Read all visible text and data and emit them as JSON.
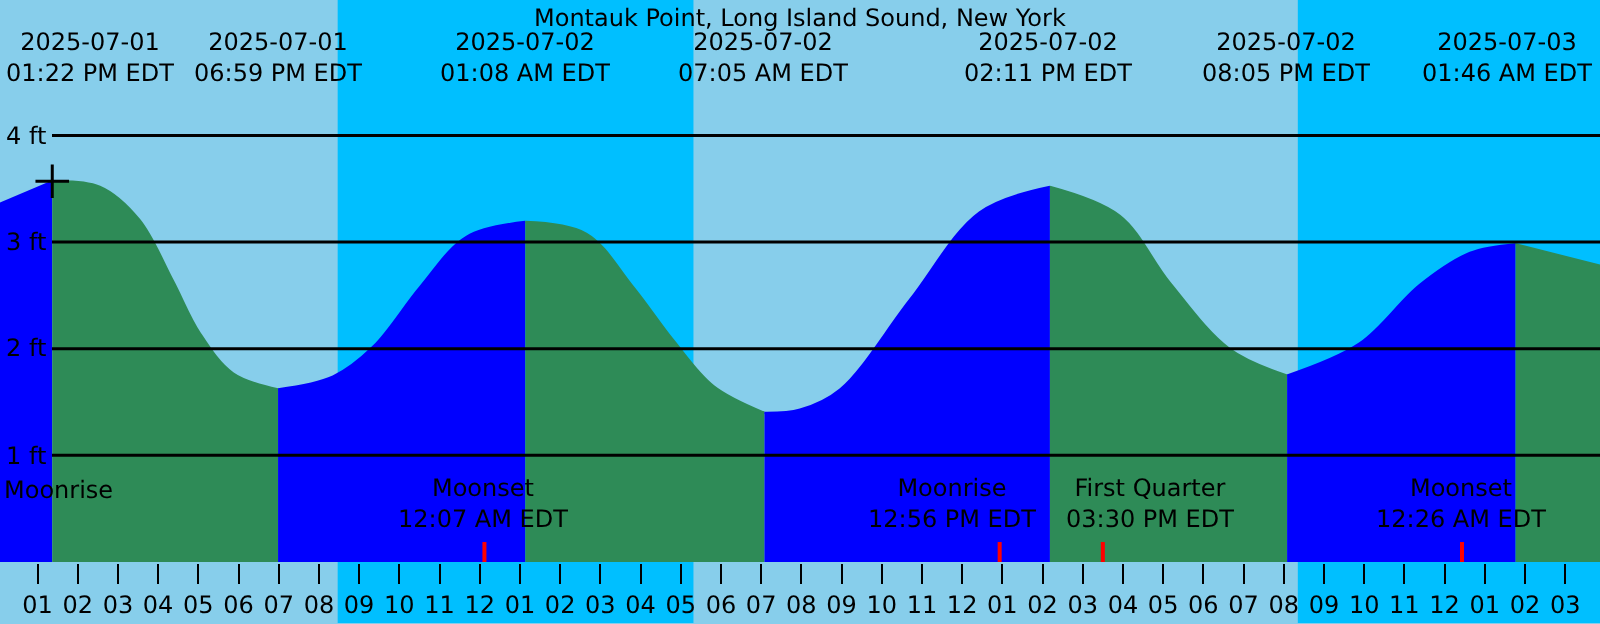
{
  "chart_data": {
    "type": "area",
    "title": "Montauk Point, Long Island Sound, New York",
    "xlim": [
      "2025-07-01T12:04",
      "2025-07-03T03:52"
    ],
    "xticks": [
      {
        "value": "2025-07-01T13:00",
        "label": "01"
      },
      {
        "value": "2025-07-01T14:00",
        "label": "02"
      },
      {
        "value": "2025-07-01T15:00",
        "label": "03"
      },
      {
        "value": "2025-07-01T16:00",
        "label": "04"
      },
      {
        "value": "2025-07-01T17:00",
        "label": "05"
      },
      {
        "value": "2025-07-01T18:00",
        "label": "06"
      },
      {
        "value": "2025-07-01T19:00",
        "label": "07"
      },
      {
        "value": "2025-07-01T20:00",
        "label": "08"
      },
      {
        "value": "2025-07-01T21:00",
        "label": "09"
      },
      {
        "value": "2025-07-01T22:00",
        "label": "10"
      },
      {
        "value": "2025-07-01T23:00",
        "label": "11"
      },
      {
        "value": "2025-07-02T00:00",
        "label": "12"
      },
      {
        "value": "2025-07-02T01:00",
        "label": "01"
      },
      {
        "value": "2025-07-02T02:00",
        "label": "02"
      },
      {
        "value": "2025-07-02T03:00",
        "label": "03"
      },
      {
        "value": "2025-07-02T04:00",
        "label": "04"
      },
      {
        "value": "2025-07-02T05:00",
        "label": "05"
      },
      {
        "value": "2025-07-02T06:00",
        "label": "06"
      },
      {
        "value": "2025-07-02T07:00",
        "label": "07"
      },
      {
        "value": "2025-07-02T08:00",
        "label": "08"
      },
      {
        "value": "2025-07-02T09:00",
        "label": "09"
      },
      {
        "value": "2025-07-02T10:00",
        "label": "10"
      },
      {
        "value": "2025-07-02T11:00",
        "label": "11"
      },
      {
        "value": "2025-07-02T12:00",
        "label": "12"
      },
      {
        "value": "2025-07-02T13:00",
        "label": "01"
      },
      {
        "value": "2025-07-02T14:00",
        "label": "02"
      },
      {
        "value": "2025-07-02T15:00",
        "label": "03"
      },
      {
        "value": "2025-07-02T16:00",
        "label": "04"
      },
      {
        "value": "2025-07-02T17:00",
        "label": "05"
      },
      {
        "value": "2025-07-02T18:00",
        "label": "06"
      },
      {
        "value": "2025-07-02T19:00",
        "label": "07"
      },
      {
        "value": "2025-07-02T20:00",
        "label": "08"
      },
      {
        "value": "2025-07-02T21:00",
        "label": "09"
      },
      {
        "value": "2025-07-02T22:00",
        "label": "10"
      },
      {
        "value": "2025-07-02T23:00",
        "label": "11"
      },
      {
        "value": "2025-07-03T00:00",
        "label": "12"
      },
      {
        "value": "2025-07-03T01:00",
        "label": "01"
      },
      {
        "value": "2025-07-03T02:00",
        "label": "02"
      },
      {
        "value": "2025-07-03T03:00",
        "label": "03"
      }
    ],
    "ylim": [
      0,
      5.27
    ],
    "yticks": [
      {
        "value": 1,
        "label": "1 ft"
      },
      {
        "value": 2,
        "label": "2 ft"
      },
      {
        "value": 3,
        "label": "3 ft"
      },
      {
        "value": 4,
        "label": "4 ft"
      }
    ],
    "grid": "y",
    "bands": [
      {
        "axis": "x",
        "from": "2025-07-01T20:28",
        "to": "2025-07-02T05:19",
        "color": "#00bfff"
      },
      {
        "axis": "x",
        "from": "2025-07-02T20:21",
        "to": "2025-07-03T03:52",
        "color": "#00bfff"
      }
    ],
    "ref_lines": [
      {
        "axis": "x",
        "value": "2025-07-02T00:07",
        "label": "Moonset\n12:07 AM EDT",
        "color": "#ff0000"
      },
      {
        "axis": "x",
        "value": "2025-07-02T12:56",
        "label": "Moonrise\n12:56 PM EDT",
        "color": "#ff0000"
      },
      {
        "axis": "x",
        "value": "2025-07-02T15:30",
        "label": "First Quarter\n03:30 PM EDT",
        "color": "#ff0000"
      },
      {
        "axis": "x",
        "value": "2025-07-03T00:26",
        "label": "Moonset\n12:26 AM EDT",
        "color": "#ff0000"
      }
    ],
    "series": [
      {
        "color": "#0000ff",
        "x": [
          "2025-07-01T12:04",
          "2025-07-01T13:22"
        ],
        "values": [
          3.36,
          3.57
        ]
      },
      {
        "color": "#2e8b57",
        "x": [
          "2025-07-01T13:22",
          "2025-07-01T14:33",
          "2025-07-01T15:32",
          "2025-07-01T16:22",
          "2025-07-01T17:02",
          "2025-07-01T17:52",
          "2025-07-01T18:59"
        ],
        "values": [
          3.57,
          3.52,
          3.21,
          2.64,
          2.15,
          1.77,
          1.62
        ]
      },
      {
        "color": "#0000ff",
        "x": [
          "2025-07-01T18:59",
          "2025-07-01T20:21",
          "2025-07-01T21:21",
          "2025-07-01T22:31",
          "2025-07-01T23:40",
          "2025-07-02T01:08"
        ],
        "values": [
          1.62,
          1.74,
          2.02,
          2.58,
          3.05,
          3.19
        ]
      },
      {
        "color": "#2e8b57",
        "x": [
          "2025-07-02T01:08",
          "2025-07-02T02:39",
          "2025-07-02T03:49",
          "2025-07-02T04:49",
          "2025-07-02T05:49",
          "2025-07-02T07:05"
        ],
        "values": [
          3.19,
          3.08,
          2.58,
          2.08,
          1.65,
          1.4
        ]
      },
      {
        "color": "#0000ff",
        "x": [
          "2025-07-02T07:05",
          "2025-07-02T07:58",
          "2025-07-02T08:58",
          "2025-07-02T10:42",
          "2025-07-02T12:26",
          "2025-07-02T14:11"
        ],
        "values": [
          1.4,
          1.43,
          1.62,
          2.46,
          3.28,
          3.52
        ]
      },
      {
        "color": "#2e8b57",
        "x": [
          "2025-07-02T14:11",
          "2025-07-02T15:55",
          "2025-07-02T17:10",
          "2025-07-02T18:39",
          "2025-07-02T20:05"
        ],
        "values": [
          3.52,
          3.25,
          2.62,
          2.0,
          1.75
        ]
      },
      {
        "color": "#0000ff",
        "x": [
          "2025-07-02T20:05",
          "2025-07-02T21:53",
          "2025-07-02T23:23",
          "2025-07-03T00:38",
          "2025-07-03T01:46"
        ],
        "values": [
          1.75,
          2.05,
          2.6,
          2.9,
          2.98
        ]
      },
      {
        "color": "#2e8b57",
        "x": [
          "2025-07-03T01:46",
          "2025-07-03T03:52"
        ],
        "values": [
          2.98,
          2.78
        ]
      },
      {
        "type": "scatter",
        "marker": "cross",
        "color": "#000000",
        "x": [
          "2025-07-01T13:22"
        ],
        "values": [
          3.57
        ]
      }
    ],
    "annotations": [
      "2025-07-01\n01:22 PM EDT",
      "2025-07-01\n06:59 PM EDT",
      "2025-07-02\n01:08 AM EDT",
      "2025-07-02\n07:05 AM EDT",
      "2025-07-02\n02:11 PM EDT",
      "2025-07-02\n08:05 PM EDT",
      "2025-07-03\n01:46 AM EDT",
      "Moonrise"
    ]
  }
}
